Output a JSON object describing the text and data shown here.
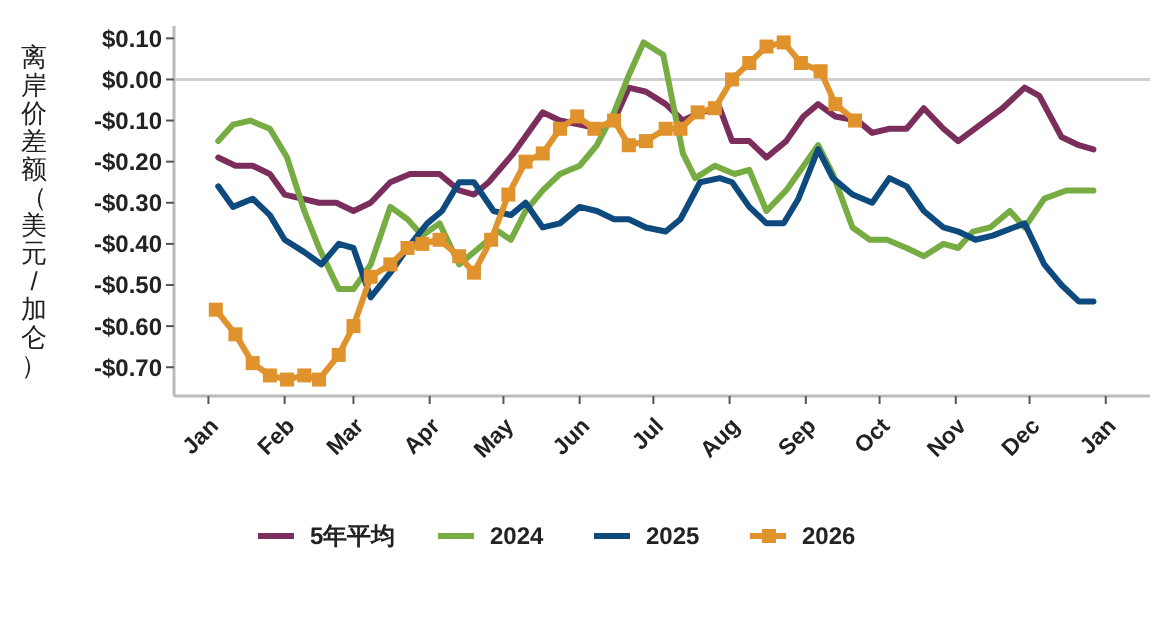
{
  "chart_data": {
    "type": "line",
    "ylabel": "离岸价差额（美元/加仑）",
    "legend": "bottom",
    "grid": false,
    "line_style": "solid",
    "xlim": [
      "2025-12-18",
      "2027-01-19"
    ],
    "ylim": [
      -0.77,
      0.13
    ],
    "xticks": [
      {
        "value": "2026-01-01",
        "label": "Jan"
      },
      {
        "value": "2026-02-01",
        "label": "Feb"
      },
      {
        "value": "2026-03-01",
        "label": "Mar"
      },
      {
        "value": "2026-04-01",
        "label": "Apr"
      },
      {
        "value": "2026-05-01",
        "label": "May"
      },
      {
        "value": "2026-06-01",
        "label": "Jun"
      },
      {
        "value": "2026-07-01",
        "label": "Jul"
      },
      {
        "value": "2026-08-01",
        "label": "Aug"
      },
      {
        "value": "2026-09-01",
        "label": "Sep"
      },
      {
        "value": "2026-10-01",
        "label": "Oct"
      },
      {
        "value": "2026-11-01",
        "label": "Nov"
      },
      {
        "value": "2026-12-01",
        "label": "Dec"
      },
      {
        "value": "2027-01-01",
        "label": "Jan"
      }
    ],
    "yticks": [
      {
        "value": 0.1,
        "label": "$0.10"
      },
      {
        "value": 0,
        "label": "$0.00"
      },
      {
        "value": -0.1,
        "label": "-$0.10"
      },
      {
        "value": -0.2,
        "label": "-$0.20"
      },
      {
        "value": -0.3,
        "label": "-$0.30"
      },
      {
        "value": -0.4,
        "label": "-$0.40"
      },
      {
        "value": -0.5,
        "label": "-$0.50"
      },
      {
        "value": -0.6,
        "label": "-$0.60"
      },
      {
        "value": -0.7,
        "label": "-$0.70"
      }
    ],
    "ref_lines": [
      {
        "axis": "y",
        "value": 0,
        "color": "#d0d0d0"
      }
    ],
    "series": [
      {
        "name": "5年平均",
        "color": "#7b2d5b",
        "marker": "none",
        "x": [
          "2026-01-05",
          "2026-01-12",
          "2026-01-19",
          "2026-01-26",
          "2026-02-01",
          "2026-02-08",
          "2026-02-15",
          "2026-02-22",
          "2026-03-01",
          "2026-03-08",
          "2026-03-16",
          "2026-03-24",
          "2026-04-05",
          "2026-04-13",
          "2026-04-19",
          "2026-04-25",
          "2026-05-05",
          "2026-05-17",
          "2026-05-24",
          "2026-06-01",
          "2026-06-09",
          "2026-06-15",
          "2026-06-21",
          "2026-06-28",
          "2026-07-06",
          "2026-07-13",
          "2026-07-20",
          "2026-07-28",
          "2026-08-02",
          "2026-08-09",
          "2026-08-16",
          "2026-08-24",
          "2026-08-31",
          "2026-09-06",
          "2026-09-13",
          "2026-09-22",
          "2026-09-28",
          "2026-10-05",
          "2026-10-12",
          "2026-10-19",
          "2026-10-27",
          "2026-11-02",
          "2026-11-11",
          "2026-11-20",
          "2026-11-29",
          "2026-12-05",
          "2026-12-14",
          "2026-12-21",
          "2026-12-27"
        ],
        "values": [
          -0.19,
          -0.21,
          -0.21,
          -0.23,
          -0.28,
          -0.29,
          -0.3,
          -0.3,
          -0.32,
          -0.3,
          -0.25,
          -0.23,
          -0.23,
          -0.27,
          -0.28,
          -0.25,
          -0.18,
          -0.08,
          -0.1,
          -0.11,
          -0.12,
          -0.1,
          -0.02,
          -0.03,
          -0.06,
          -0.1,
          -0.08,
          -0.07,
          -0.15,
          -0.15,
          -0.19,
          -0.15,
          -0.09,
          -0.06,
          -0.09,
          -0.1,
          -0.13,
          -0.12,
          -0.12,
          -0.07,
          -0.12,
          -0.15,
          -0.11,
          -0.07,
          -0.02,
          -0.04,
          -0.14,
          -0.16,
          -0.17
        ]
      },
      {
        "name": "2024",
        "color": "#77ac43",
        "marker": "none",
        "x": [
          "2026-01-05",
          "2026-01-11",
          "2026-01-18",
          "2026-01-26",
          "2026-02-02",
          "2026-02-09",
          "2026-02-15",
          "2026-02-23",
          "2026-03-01",
          "2026-03-08",
          "2026-03-16",
          "2026-03-23",
          "2026-03-29",
          "2026-04-05",
          "2026-04-13",
          "2026-04-21",
          "2026-04-29",
          "2026-05-04",
          "2026-05-10",
          "2026-05-17",
          "2026-05-24",
          "2026-06-01",
          "2026-06-08",
          "2026-06-15",
          "2026-06-21",
          "2026-06-27",
          "2026-07-05",
          "2026-07-13",
          "2026-07-18",
          "2026-07-26",
          "2026-08-03",
          "2026-08-09",
          "2026-08-16",
          "2026-08-24",
          "2026-09-06",
          "2026-09-12",
          "2026-09-20",
          "2026-09-27",
          "2026-10-04",
          "2026-10-12",
          "2026-10-19",
          "2026-10-27",
          "2026-11-02",
          "2026-11-08",
          "2026-11-15",
          "2026-11-23",
          "2026-11-29",
          "2026-12-07",
          "2026-12-16",
          "2026-12-21",
          "2026-12-27"
        ],
        "values": [
          -0.15,
          -0.11,
          -0.1,
          -0.12,
          -0.19,
          -0.32,
          -0.41,
          -0.51,
          -0.51,
          -0.45,
          -0.31,
          -0.34,
          -0.38,
          -0.35,
          -0.45,
          -0.41,
          -0.37,
          -0.39,
          -0.32,
          -0.27,
          -0.23,
          -0.21,
          -0.16,
          -0.08,
          0.01,
          0.09,
          0.06,
          -0.18,
          -0.24,
          -0.21,
          -0.23,
          -0.22,
          -0.32,
          -0.27,
          -0.16,
          -0.23,
          -0.36,
          -0.39,
          -0.39,
          -0.41,
          -0.43,
          -0.4,
          -0.41,
          -0.37,
          -0.36,
          -0.32,
          -0.36,
          -0.29,
          -0.27,
          -0.27,
          -0.27
        ]
      },
      {
        "name": "2025",
        "color": "#0e4a7e",
        "marker": "none",
        "x": [
          "2026-01-05",
          "2026-01-11",
          "2026-01-19",
          "2026-01-26",
          "2026-02-01",
          "2026-02-09",
          "2026-02-16",
          "2026-02-23",
          "2026-03-01",
          "2026-03-08",
          "2026-03-16",
          "2026-03-23",
          "2026-03-31",
          "2026-04-06",
          "2026-04-13",
          "2026-04-19",
          "2026-04-27",
          "2026-05-04",
          "2026-05-10",
          "2026-05-17",
          "2026-05-24",
          "2026-06-01",
          "2026-06-08",
          "2026-06-15",
          "2026-06-21",
          "2026-06-28",
          "2026-07-06",
          "2026-07-12",
          "2026-07-20",
          "2026-07-28",
          "2026-08-02",
          "2026-08-09",
          "2026-08-16",
          "2026-08-23",
          "2026-08-29",
          "2026-09-06",
          "2026-09-12",
          "2026-09-20",
          "2026-09-28",
          "2026-10-05",
          "2026-10-12",
          "2026-10-19",
          "2026-10-27",
          "2026-11-02",
          "2026-11-09",
          "2026-11-16",
          "2026-11-29",
          "2026-12-07",
          "2026-12-14",
          "2026-12-21",
          "2026-12-27"
        ],
        "values": [
          -0.26,
          -0.31,
          -0.29,
          -0.33,
          -0.39,
          -0.42,
          -0.45,
          -0.4,
          -0.41,
          -0.53,
          -0.47,
          -0.41,
          -0.35,
          -0.32,
          -0.25,
          -0.25,
          -0.32,
          -0.33,
          -0.3,
          -0.36,
          -0.35,
          -0.31,
          -0.32,
          -0.34,
          -0.34,
          -0.36,
          -0.37,
          -0.34,
          -0.25,
          -0.24,
          -0.25,
          -0.31,
          -0.35,
          -0.35,
          -0.29,
          -0.17,
          -0.24,
          -0.28,
          -0.3,
          -0.24,
          -0.26,
          -0.32,
          -0.36,
          -0.37,
          -0.39,
          -0.38,
          -0.35,
          -0.45,
          -0.5,
          -0.54,
          -0.54
        ]
      },
      {
        "name": "2026",
        "color": "#e0922c",
        "marker": "square",
        "x": [
          "2026-01-04",
          "2026-01-12",
          "2026-01-19",
          "2026-01-26",
          "2026-02-02",
          "2026-02-09",
          "2026-02-15",
          "2026-02-23",
          "2026-03-01",
          "2026-03-08",
          "2026-03-16",
          "2026-03-23",
          "2026-03-29",
          "2026-04-05",
          "2026-04-13",
          "2026-04-19",
          "2026-04-26",
          "2026-05-03",
          "2026-05-10",
          "2026-05-17",
          "2026-05-24",
          "2026-05-31",
          "2026-06-07",
          "2026-06-15",
          "2026-06-21",
          "2026-06-28",
          "2026-07-06",
          "2026-07-12",
          "2026-07-19",
          "2026-07-26",
          "2026-08-02",
          "2026-08-09",
          "2026-08-16",
          "2026-08-23",
          "2026-08-30",
          "2026-09-07",
          "2026-09-13",
          "2026-09-21"
        ],
        "values": [
          -0.56,
          -0.62,
          -0.69,
          -0.72,
          -0.73,
          -0.72,
          -0.73,
          -0.67,
          -0.6,
          -0.48,
          -0.45,
          -0.41,
          -0.4,
          -0.39,
          -0.43,
          -0.47,
          -0.39,
          -0.28,
          -0.2,
          -0.18,
          -0.12,
          -0.09,
          -0.12,
          -0.1,
          -0.16,
          -0.15,
          -0.12,
          -0.12,
          -0.08,
          -0.07,
          0,
          0.04,
          0.08,
          0.09,
          0.04,
          0.02,
          -0.06,
          -0.1
        ]
      }
    ]
  }
}
